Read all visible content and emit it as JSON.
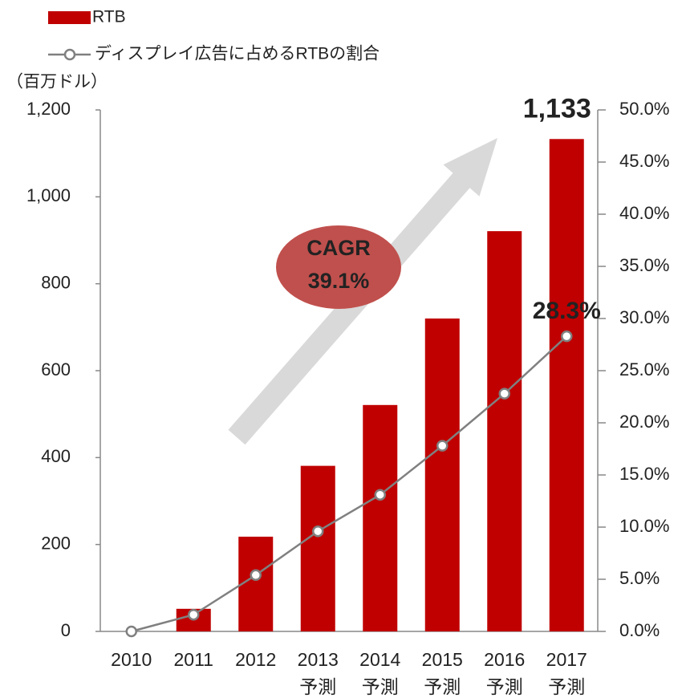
{
  "chart_data": {
    "type": "bar_line",
    "y_label": "（百万ドル）",
    "categories": [
      "2010",
      "2011",
      "2012",
      "2013\n予測",
      "2014\n予測",
      "2015\n予測",
      "2016\n予測",
      "2017\n予測"
    ],
    "series": [
      {
        "name": "RTB",
        "type": "bar",
        "color": "#c00000",
        "values": [
          0,
          52,
          218,
          381,
          521,
          720,
          921,
          1133
        ],
        "value_labels": [
          null,
          null,
          null,
          null,
          null,
          null,
          null,
          "1,133"
        ]
      },
      {
        "name": "ディスプレイ広告に占めるRTBの割合",
        "type": "line",
        "axis": "y2",
        "color": "#808080",
        "values": [
          0,
          1.6,
          5.4,
          9.6,
          13.1,
          17.8,
          22.8,
          28.3
        ],
        "value_labels": [
          null,
          null,
          null,
          null,
          null,
          null,
          null,
          "28.3%"
        ]
      }
    ],
    "ylim": [
      0,
      1200
    ],
    "yticks": [
      0,
      200,
      400,
      600,
      800,
      {
        "value": 1000,
        "label": "1,000"
      },
      {
        "value": 1200,
        "label": "1,200"
      }
    ],
    "y2lim": [
      0,
      50
    ],
    "y2ticks": [
      {
        "value": 0,
        "label": "0.0%"
      },
      {
        "value": 5,
        "label": "5.0%"
      },
      {
        "value": 10,
        "label": "10.0%"
      },
      {
        "value": 15,
        "label": "15.0%"
      },
      {
        "value": 20,
        "label": "20.0%"
      },
      {
        "value": 25,
        "label": "25.0%"
      },
      {
        "value": 30,
        "label": "30.0%"
      },
      {
        "value": 35,
        "label": "35.0%"
      },
      {
        "value": 40,
        "label": "40.0%"
      },
      {
        "value": 45,
        "label": "45.0%"
      },
      {
        "value": 50,
        "label": "50.0%"
      }
    ],
    "cagr_label": "CAGR",
    "cagr_value": "39.1%",
    "grid": false
  }
}
